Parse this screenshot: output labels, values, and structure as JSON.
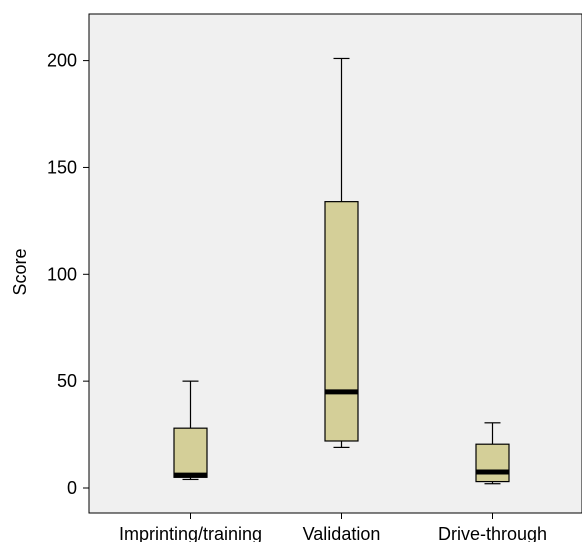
{
  "chart_data": {
    "type": "boxplot",
    "title": "",
    "xlabel": "",
    "ylabel": "Score",
    "ylim": [
      -12,
      222
    ],
    "yticks": [
      0,
      50,
      100,
      150,
      200
    ],
    "grid": false,
    "categories": [
      "Imprinting/training",
      "Validation",
      "Drive-through"
    ],
    "boxes": [
      {
        "category": "Imprinting/training",
        "whisker_low": 4,
        "q1": 5,
        "median": 6,
        "q3": 28,
        "whisker_high": 50
      },
      {
        "category": "Validation",
        "whisker_low": 19,
        "q1": 22,
        "median": 45,
        "q3": 134,
        "whisker_high": 201
      },
      {
        "category": "Drive-through",
        "whisker_low": 2,
        "q1": 3,
        "median": 7.5,
        "q3": 20.5,
        "whisker_high": 30.5
      }
    ],
    "colors": {
      "plot_background": "#f0f0f0",
      "box_fill": "#d4cf98",
      "stroke": "#000000"
    }
  }
}
